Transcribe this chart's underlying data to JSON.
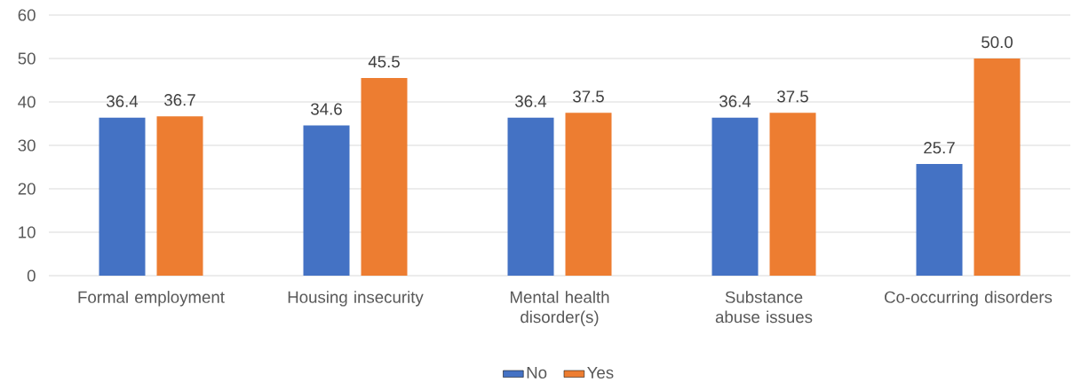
{
  "chart_data": {
    "type": "bar",
    "categories": [
      "Formal employment",
      "Housing insecurity",
      "Mental health disorder(s)",
      "Substance abuse issues",
      "Co-occurring disorders"
    ],
    "series": [
      {
        "name": "No",
        "color": "#4472c4",
        "values": [
          36.4,
          34.6,
          36.4,
          36.4,
          25.7
        ],
        "value_labels": [
          "36.4",
          "34.6",
          "36.4",
          "36.4",
          "25.7"
        ]
      },
      {
        "name": "Yes",
        "color": "#ed7d31",
        "values": [
          36.7,
          45.5,
          37.5,
          37.5,
          50.0
        ],
        "value_labels": [
          "36.7",
          "45.5",
          "37.5",
          "37.5",
          "50.0"
        ]
      }
    ],
    "ylim": [
      0,
      60
    ],
    "yticks": [
      0,
      10,
      20,
      30,
      40,
      50,
      60
    ],
    "grid": "y",
    "legend": "bottom"
  }
}
